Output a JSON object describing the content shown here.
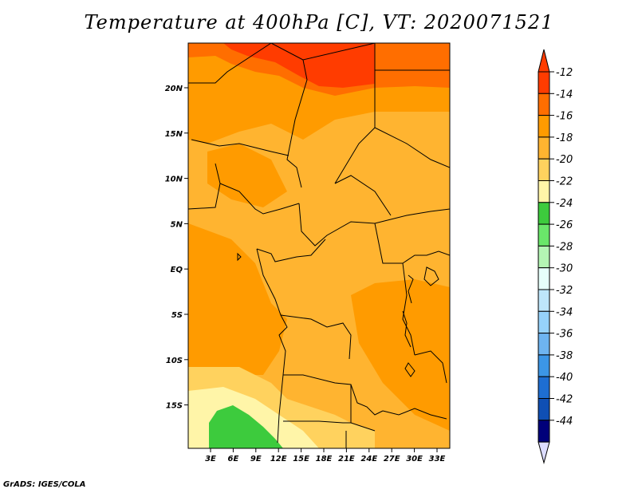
{
  "title": "Temperature at 400hPa [C], VT: 2020071521",
  "footer": "GrADS: IGES/COLA",
  "map": {
    "lon_ticks": [
      "3E",
      "6E",
      "9E",
      "12E",
      "15E",
      "18E",
      "21E",
      "24E",
      "27E",
      "30E",
      "33E"
    ],
    "lat_ticks": [
      "20N",
      "15N",
      "10N",
      "5N",
      "EQ",
      "5S",
      "10S",
      "15S"
    ]
  },
  "colorbar": {
    "labels": [
      "-12",
      "-14",
      "-16",
      "-18",
      "-20",
      "-22",
      "-24",
      "-26",
      "-28",
      "-30",
      "-32",
      "-34",
      "-36",
      "-38",
      "-40",
      "-42",
      "-44"
    ],
    "colors": [
      "#ff3c00",
      "#ff6e00",
      "#ff9b00",
      "#ffb430",
      "#ffd25e",
      "#fff5a8",
      "#3dcb3d",
      "#6ae66a",
      "#b4f5b4",
      "#e6fffa",
      "#bee6fa",
      "#96d2fa",
      "#6eb4f0",
      "#3c96e6",
      "#1e6ed2",
      "#0f4fb4",
      "#00007a"
    ],
    "top_arrow_color": "#ff3c00",
    "bottom_arrow_color": "#dcdcff"
  }
}
